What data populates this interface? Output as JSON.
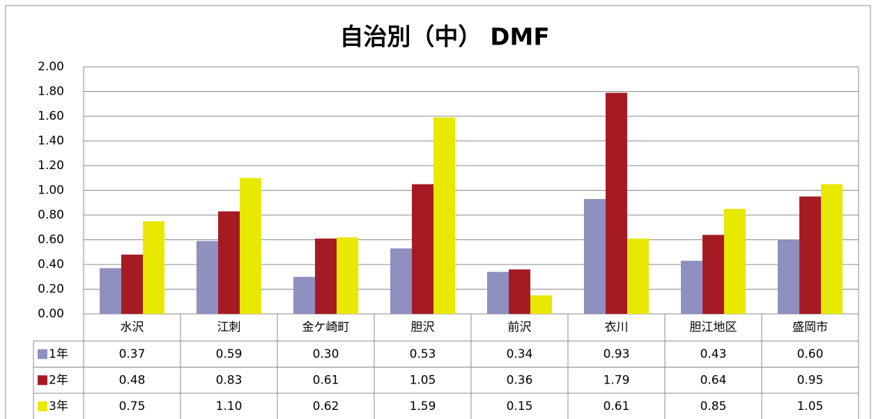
{
  "chart_data": {
    "type": "bar",
    "title": "自治別（中） DMF",
    "categories": [
      "水沢",
      "江刺",
      "金ケ崎町",
      "胆沢",
      "前沢",
      "衣川",
      "胆江地区",
      "盛岡市"
    ],
    "series": [
      {
        "name": "1年",
        "color": "#8e90c0",
        "values": [
          0.37,
          0.59,
          0.3,
          0.53,
          0.34,
          0.93,
          0.43,
          0.6
        ],
        "value_labels": [
          "0.37",
          "0.59",
          "0.30",
          "0.53",
          "0.34",
          "0.93",
          "0.43",
          "0.60"
        ]
      },
      {
        "name": "2年",
        "color": "#a51b24",
        "values": [
          0.48,
          0.83,
          0.61,
          1.05,
          0.36,
          1.79,
          0.64,
          0.95
        ],
        "value_labels": [
          "0.48",
          "0.83",
          "0.61",
          "1.05",
          "0.36",
          "1.79",
          "0.64",
          "0.95"
        ]
      },
      {
        "name": "3年",
        "color": "#e8e800",
        "values": [
          0.75,
          1.1,
          0.62,
          1.59,
          0.15,
          0.61,
          0.85,
          1.05
        ],
        "value_labels": [
          "0.75",
          "1.10",
          "0.62",
          "1.59",
          "0.15",
          "0.61",
          "0.85",
          "1.05"
        ]
      }
    ],
    "ylim": [
      0,
      2
    ],
    "yticks": [
      {
        "value": 0,
        "label": "0.00"
      },
      {
        "value": 0.2,
        "label": "0.20"
      },
      {
        "value": 0.4,
        "label": "0.40"
      },
      {
        "value": 0.6,
        "label": "0.60"
      },
      {
        "value": 0.8,
        "label": "0.80"
      },
      {
        "value": 1,
        "label": "1.00"
      },
      {
        "value": 1.2,
        "label": "1.20"
      },
      {
        "value": 1.4,
        "label": "1.40"
      },
      {
        "value": 1.6,
        "label": "1.60"
      },
      {
        "value": 1.8,
        "label": "1.80"
      },
      {
        "value": 2,
        "label": "2.00"
      }
    ],
    "grid": true
  }
}
